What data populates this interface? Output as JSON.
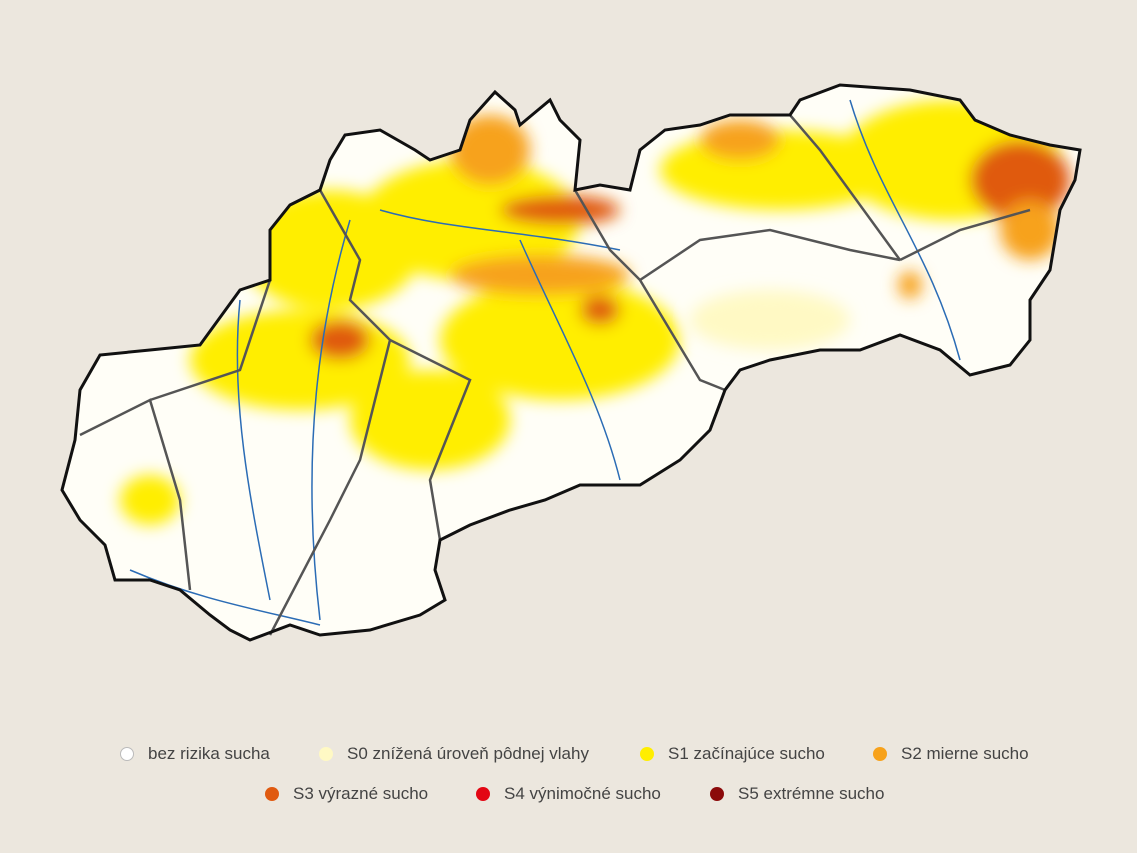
{
  "legend": {
    "items": [
      {
        "label": "bez rizika sucha",
        "color": "#ffffff"
      },
      {
        "label": "S0 znížená úroveň pôdnej vlahy",
        "color": "#fff9c4"
      },
      {
        "label": "S1 začínajúce sucho",
        "color": "#ffee00"
      },
      {
        "label": "S2 mierne sucho",
        "color": "#f7a21b"
      },
      {
        "label": "S3 výrazné sucho",
        "color": "#e05a10"
      },
      {
        "label": "S4 výnimočné sucho",
        "color": "#e30613"
      },
      {
        "label": "S5 extrémne sucho",
        "color": "#8b0a0a"
      }
    ]
  }
}
